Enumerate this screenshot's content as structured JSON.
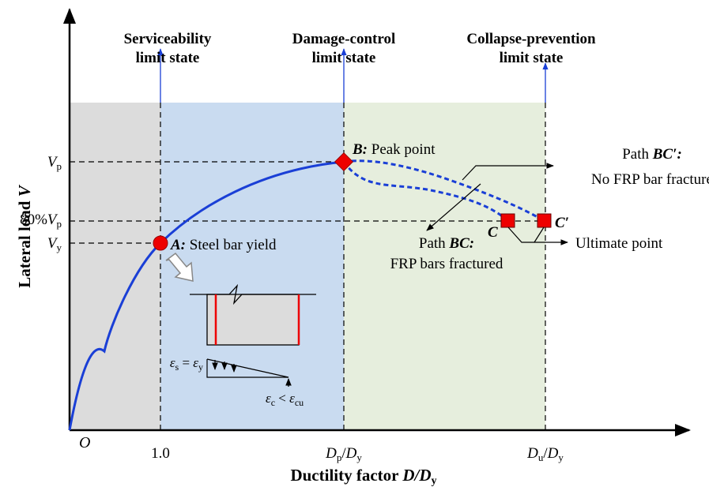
{
  "limit_states": [
    {
      "title": "Serviceability",
      "subtitle": "limit state"
    },
    {
      "title": "Damage-control",
      "subtitle": "limit state"
    },
    {
      "title": "Collapse-prevention",
      "subtitle": "limit state"
    }
  ],
  "axes": {
    "origin": "O",
    "y_label": {
      "text": "Lateral load ",
      "var": "V"
    },
    "x_label": {
      "text": "Ductility factor ",
      "var": "D/D",
      "sub": "y"
    },
    "y_ticks": [
      {
        "var": "V",
        "sub": "p"
      },
      {
        "prefix": "80%",
        "var": "V",
        "sub": "p"
      },
      {
        "var": "V",
        "sub": "y"
      }
    ],
    "x_ticks": [
      {
        "text": "1.0"
      },
      {
        "num": "D",
        "num_sub": "p",
        "sep": "/",
        "den": "D",
        "den_sub": "y"
      },
      {
        "num": "D",
        "num_sub": "u",
        "sep": "/",
        "den": "D",
        "den_sub": "y"
      }
    ]
  },
  "points": {
    "A": {
      "label": "A:",
      "text": " Steel bar yield"
    },
    "B": {
      "label": "B:",
      "text": " Peak point"
    },
    "C": "C",
    "C_prime": "C′"
  },
  "annotations": {
    "path_bc_prime": {
      "prefix": "Path ",
      "name": "BC′:",
      "text": "No FRP bar fracture"
    },
    "path_bc": {
      "prefix": "Path ",
      "name": "BC:",
      "text": "FRP bars fractured"
    },
    "ultimate": "Ultimate point"
  },
  "strain": {
    "steel": {
      "e1": "ε",
      "s1": "s",
      "op": " = ",
      "e2": "ε",
      "s2": "y"
    },
    "concrete": {
      "e1": "ε",
      "s1": "c",
      "op": " < ",
      "e2": "ε",
      "s2": "cu"
    }
  }
}
